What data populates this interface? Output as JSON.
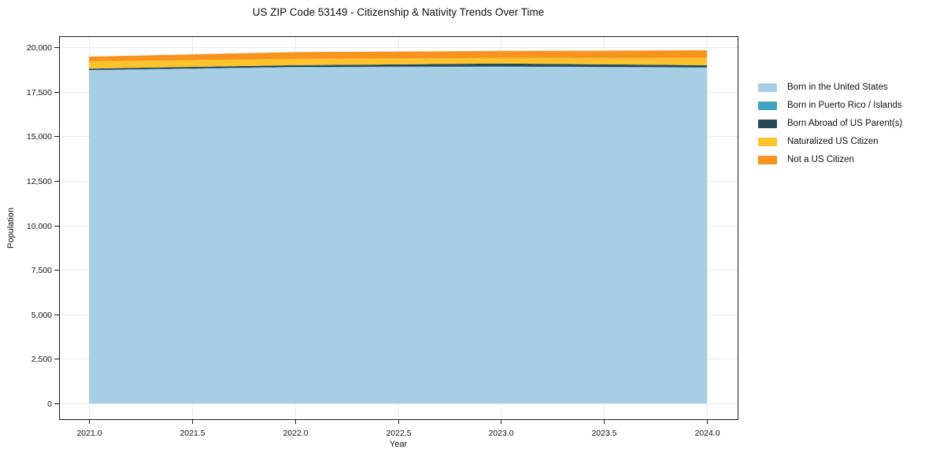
{
  "chart_data": {
    "type": "area",
    "stacked": true,
    "title": "US ZIP Code 53149 - Citizenship & Nativity Trends Over Time",
    "xlabel": "Year",
    "ylabel": "Population",
    "x": [
      2021,
      2022,
      2023,
      2024
    ],
    "series": [
      {
        "name": "Born in the United States",
        "color": "#A6CFE5",
        "values": [
          18700,
          18870,
          18900,
          18850
        ]
      },
      {
        "name": "Born in Puerto Rico / Islands",
        "color": "#42A3C0",
        "values": [
          20,
          20,
          20,
          20
        ]
      },
      {
        "name": "Born Abroad of US Parent(s)",
        "color": "#27485C",
        "values": [
          80,
          100,
          160,
          120
        ]
      },
      {
        "name": "Naturalized US Citizen",
        "color": "#FCC32D",
        "values": [
          400,
          350,
          310,
          400
        ]
      },
      {
        "name": "Not a US Citizen",
        "color": "#F8941E",
        "values": [
          270,
          380,
          400,
          440
        ]
      }
    ],
    "xticks": {
      "values": [
        2021.0,
        2021.5,
        2022.0,
        2022.5,
        2023.0,
        2023.5,
        2024.0
      ],
      "labels": [
        "2021.0",
        "2021.5",
        "2022.0",
        "2022.5",
        "2023.0",
        "2023.5",
        "2024.0"
      ]
    },
    "yticks": {
      "values": [
        0,
        2500,
        5000,
        7500,
        10000,
        12500,
        15000,
        17500,
        20000
      ],
      "labels": [
        "0",
        "2,500",
        "5,000",
        "7,500",
        "10,000",
        "12,500",
        "15,000",
        "17,500",
        "20,000"
      ]
    },
    "ylim": [
      0,
      20000
    ],
    "grid": true,
    "legend_position": "right-outside"
  },
  "styles": {
    "grid_color": "#ebebeb",
    "spine_color": "#1a1a1a",
    "text_color": "#111111",
    "background": "#ffffff"
  }
}
